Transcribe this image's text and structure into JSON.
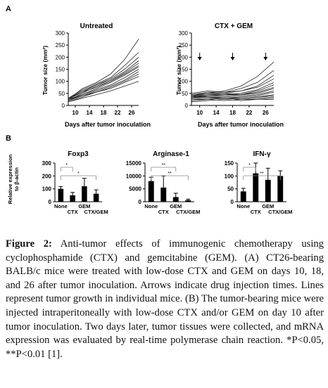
{
  "figure": {
    "panel_a_letter": "A",
    "panel_b_letter": "B",
    "panel_a_xlabel": "Days after tumor inoculation",
    "panel_b_ylabel_line1": "Relative expression",
    "panel_b_ylabel_line2": "to β-actin"
  },
  "caption": {
    "label": "Figure 2:",
    "text": " Anti-tumor effects of immunogenic chemotherapy using cyclophosphamide (CTX) and gemcitabine (GEM). (A) CT26-bearing BALB/c mice were treated with low-dose CTX and GEM on days 10, 18, and 26 after tumor inoculation. Arrows indicate drug injection times. Lines represent tumor growth in individual mice. (B) The tumor-bearing mice were injected intraperitoneally with low-dose CTX and/or GEM on day 10 after tumor inoculation. Two days later, tumor tissues were collected, and mRNA expression was evaluated by real-time polymerase chain reaction. *P<0.05, **P<0.01 [1]."
  },
  "chart_data": [
    {
      "type": "line",
      "title": "Untreated",
      "xlabel": "Days after tumor inoculation",
      "ylabel": "Tumor size (mm²)",
      "xticks": [
        10,
        14,
        18,
        22,
        26
      ],
      "yticks": [
        0,
        50,
        100,
        150,
        200,
        250,
        300
      ],
      "xlim": [
        8,
        28
      ],
      "ylim": [
        0,
        300
      ],
      "x": [
        8,
        12,
        16,
        20,
        24,
        28
      ],
      "series": [
        {
          "values": [
            25,
            70,
            95,
            130,
            190,
            275
          ]
        },
        {
          "values": [
            30,
            65,
            90,
            115,
            165,
            220
          ]
        },
        {
          "values": [
            30,
            60,
            85,
            110,
            150,
            200
          ]
        },
        {
          "values": [
            25,
            55,
            85,
            105,
            140,
            185
          ]
        },
        {
          "values": [
            20,
            50,
            80,
            100,
            135,
            175
          ]
        },
        {
          "values": [
            30,
            55,
            75,
            100,
            130,
            165
          ]
        },
        {
          "values": [
            20,
            45,
            70,
            95,
            125,
            160
          ]
        },
        {
          "values": [
            25,
            45,
            65,
            85,
            115,
            150
          ]
        },
        {
          "values": [
            20,
            40,
            60,
            80,
            105,
            140
          ]
        },
        {
          "values": [
            15,
            35,
            55,
            75,
            100,
            130
          ]
        },
        {
          "values": [
            20,
            40,
            55,
            70,
            95,
            120
          ]
        },
        {
          "values": [
            15,
            30,
            45,
            60,
            80,
            100
          ]
        }
      ]
    },
    {
      "type": "line",
      "title": "CTX + GEM",
      "xlabel": "Days after tumor inoculation",
      "ylabel": "Tumor size (mm²)",
      "xticks": [
        10,
        14,
        18,
        22,
        26
      ],
      "yticks": [
        0,
        50,
        100,
        150,
        200,
        250,
        300
      ],
      "xlim": [
        8,
        28
      ],
      "ylim": [
        0,
        300
      ],
      "arrows_at_days": [
        10,
        18,
        26
      ],
      "x": [
        8,
        12,
        16,
        20,
        24,
        28
      ],
      "series": [
        {
          "values": [
            40,
            50,
            60,
            80,
            120,
            180
          ]
        },
        {
          "values": [
            45,
            55,
            55,
            70,
            95,
            145
          ]
        },
        {
          "values": [
            35,
            45,
            50,
            60,
            80,
            125
          ]
        },
        {
          "values": [
            50,
            60,
            55,
            60,
            75,
            110
          ]
        },
        {
          "values": [
            40,
            45,
            45,
            50,
            65,
            95
          ]
        },
        {
          "values": [
            30,
            40,
            45,
            45,
            60,
            85
          ]
        },
        {
          "values": [
            35,
            40,
            40,
            45,
            55,
            75
          ]
        },
        {
          "values": [
            45,
            50,
            50,
            45,
            50,
            70
          ]
        },
        {
          "values": [
            30,
            35,
            35,
            40,
            45,
            60
          ]
        },
        {
          "values": [
            25,
            30,
            30,
            35,
            40,
            55
          ]
        },
        {
          "values": [
            35,
            35,
            30,
            30,
            35,
            45
          ]
        },
        {
          "values": [
            20,
            25,
            30,
            30,
            35,
            40
          ]
        },
        {
          "values": [
            40,
            35,
            30,
            25,
            30,
            35
          ]
        },
        {
          "values": [
            25,
            25,
            20,
            25,
            25,
            30
          ]
        },
        {
          "values": [
            15,
            20,
            25,
            20,
            25,
            25
          ]
        }
      ]
    },
    {
      "type": "bar",
      "title": "Foxp3",
      "categories": [
        "None",
        "CTX",
        "GEM",
        "CTX/GEM"
      ],
      "values": [
        100,
        50,
        120,
        62
      ],
      "errors": [
        18,
        22,
        62,
        30
      ],
      "yticks": [
        0,
        100,
        200,
        300
      ],
      "ylim": [
        0,
        300
      ],
      "significance": [
        {
          "from": 0,
          "to": 1,
          "label": "*"
        },
        {
          "from": 0,
          "to": 3,
          "label": "*"
        }
      ]
    },
    {
      "type": "bar",
      "title": "Arginase-1",
      "categories": [
        "None",
        "CTX",
        "GEM",
        "CTX/GEM"
      ],
      "values": [
        8000,
        5500,
        1800,
        600
      ],
      "errors": [
        1500,
        4500,
        1500,
        400
      ],
      "yticks": [
        0,
        5000,
        10000,
        15000
      ],
      "ylim": [
        0,
        15000
      ],
      "significance": [
        {
          "from": 0,
          "to": 2,
          "label": "**"
        },
        {
          "from": 0,
          "to": 3,
          "label": "**"
        }
      ]
    },
    {
      "type": "bar",
      "title": "IFN-γ",
      "categories": [
        "None",
        "CTX",
        "GEM",
        "CTX/GEM"
      ],
      "values": [
        40,
        110,
        85,
        100
      ],
      "errors": [
        12,
        40,
        45,
        20
      ],
      "yticks": [
        0,
        50,
        100,
        150
      ],
      "ylim": [
        0,
        150
      ],
      "significance": [
        {
          "from": 0,
          "to": 1,
          "label": "*"
        },
        {
          "from": 0,
          "to": 3,
          "label": "**"
        }
      ]
    }
  ]
}
